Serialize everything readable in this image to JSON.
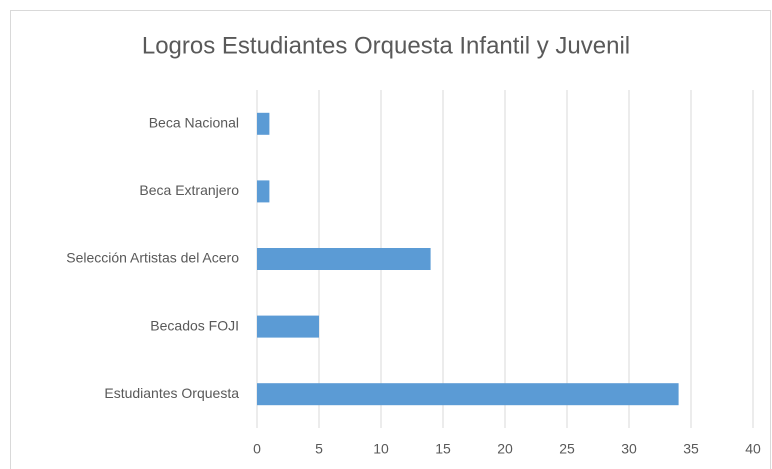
{
  "chart_data": {
    "type": "hbar",
    "title": "Logros Estudiantes Orquesta Infantil y Juvenil",
    "categories": [
      "Beca Nacional",
      "Beca Extranjero",
      "Selección Artistas del Acero",
      "Becados FOJI",
      "Estudiantes Orquesta"
    ],
    "values": [
      1,
      1,
      14,
      5,
      34
    ],
    "color": "#5b9bd5",
    "xlim": [
      0,
      40
    ],
    "xticks": [
      0,
      5,
      10,
      15,
      20,
      25,
      30,
      35,
      40
    ],
    "grid": true
  }
}
